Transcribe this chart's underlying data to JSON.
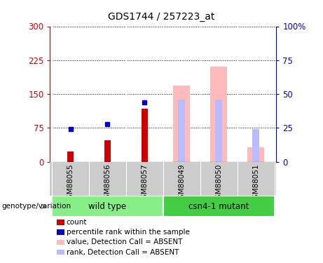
{
  "title": "GDS1744 / 257223_at",
  "categories": [
    "GSM88055",
    "GSM88056",
    "GSM88057",
    "GSM88049",
    "GSM88050",
    "GSM88051"
  ],
  "count_values": [
    22,
    47,
    118,
    null,
    null,
    null
  ],
  "rank_values_pct": [
    24,
    28,
    44,
    null,
    null,
    null
  ],
  "absent_value_values": [
    null,
    null,
    null,
    168,
    210,
    32
  ],
  "absent_rank_values_pct": [
    null,
    null,
    null,
    46,
    46,
    24
  ],
  "left_yaxis_ticks": [
    0,
    75,
    150,
    225,
    300
  ],
  "left_yaxis_label_color": "#cc0000",
  "right_yaxis_ticks": [
    0,
    25,
    50,
    75,
    100
  ],
  "right_yaxis_label_color": "#0000cc",
  "ylim_left": [
    0,
    300
  ],
  "ylim_right": [
    0,
    100
  ],
  "count_color": "#cc0000",
  "rank_color": "#0000cc",
  "absent_value_color": "#ffbbbb",
  "absent_rank_color": "#bbbbff",
  "bg_color": "#ffffff",
  "xlabel_area_color": "#cccccc",
  "group_wt_color": "#88ee88",
  "group_mut_color": "#44cc44",
  "legend_items": [
    "count",
    "percentile rank within the sample",
    "value, Detection Call = ABSENT",
    "rank, Detection Call = ABSENT"
  ],
  "legend_colors": [
    "#cc0000",
    "#0000cc",
    "#ffbbbb",
    "#bbbbff"
  ],
  "genotype_label": "genotype/variation"
}
